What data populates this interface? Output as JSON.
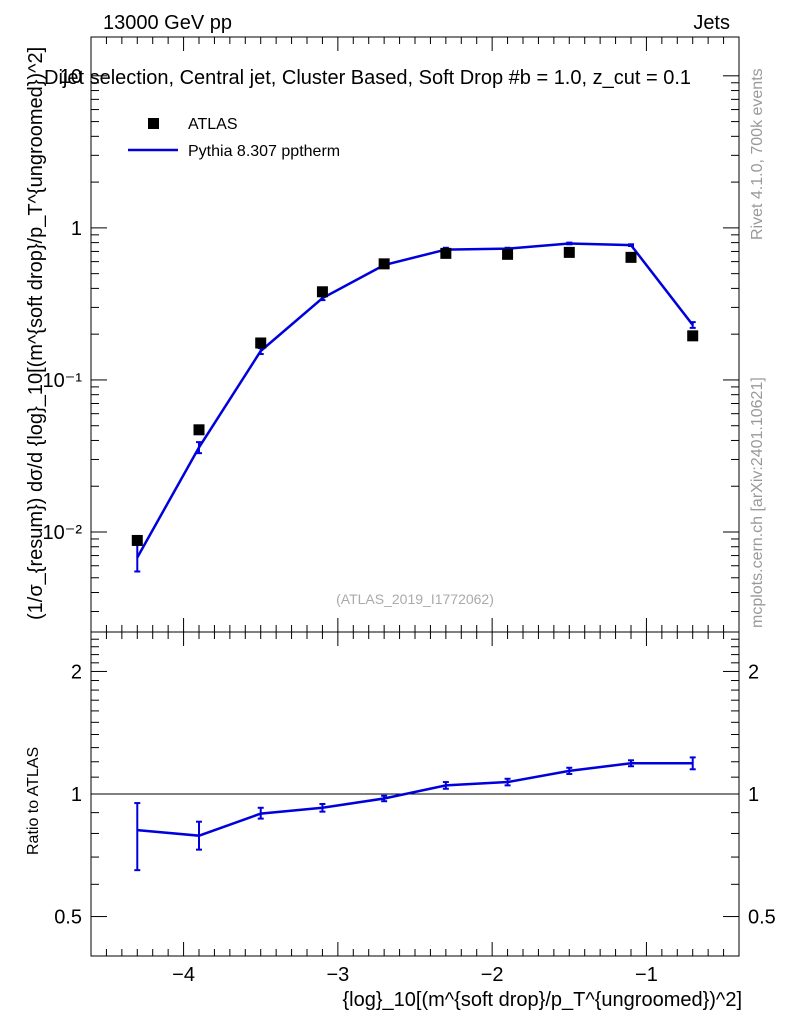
{
  "header": {
    "left": "13000 GeV pp",
    "right": "Jets",
    "title": "Dijet selection, Central jet, Cluster Based, Soft Drop #b = 1.0, z_cut = 0.1"
  },
  "side_labels": {
    "rivet": "Rivet 4.1.0,  700k events",
    "mcplots": "mcplots.cern.ch [arXiv:2401.10621]"
  },
  "analysis_ref": "(ATLAS_2019_I1772062)",
  "legend": {
    "data": "ATLAS",
    "mc": "Pythia 8.307 pptherm"
  },
  "axes": {
    "ylabel_main": "(1/σ_{resum}) dσ/d {log}_10[(m^{soft drop}/p_T^{ungroomed})^2]",
    "ylabel_ratio": "Ratio to ATLAS",
    "xlabel": "{log}_10[(m^{soft drop}/p_T^{ungroomed})^2]",
    "x_ticks": [
      "−4",
      "−3",
      "−2",
      "−1"
    ],
    "main_ticks": [
      "10",
      "1",
      "10⁻¹",
      "10⁻²"
    ],
    "ratio_ticks": [
      "2",
      "1",
      "0.5"
    ]
  },
  "colors": {
    "mc": "#0000dd",
    "data": "#000000"
  },
  "chart_data": {
    "type": "scatter",
    "x": [
      -4.3,
      -3.9,
      -3.5,
      -3.1,
      -2.7,
      -2.3,
      -1.9,
      -1.5,
      -1.1,
      -0.7
    ],
    "xlim": [
      -4.6,
      -0.4
    ],
    "main": {
      "yscale": "log",
      "ylim": [
        0.0022,
        18
      ],
      "series": [
        {
          "name": "ATLAS",
          "style": "markers",
          "values": [
            0.0088,
            0.047,
            0.175,
            0.38,
            0.58,
            0.68,
            0.67,
            0.69,
            0.64,
            0.195
          ]
        },
        {
          "name": "Pythia 8.307 pptherm",
          "style": "line",
          "values": [
            0.0068,
            0.036,
            0.155,
            0.345,
            0.57,
            0.72,
            0.73,
            0.79,
            0.77,
            0.23
          ],
          "err_low": [
            0.0055,
            0.033,
            0.148,
            0.335,
            0.56,
            0.7,
            0.72,
            0.78,
            0.76,
            0.22
          ],
          "err_high": [
            0.0085,
            0.039,
            0.162,
            0.355,
            0.58,
            0.74,
            0.74,
            0.8,
            0.78,
            0.24
          ]
        }
      ]
    },
    "ratio": {
      "yscale": "log",
      "ylim": [
        0.4,
        2.5
      ],
      "reference": 1.0,
      "series": [
        {
          "name": "Pythia 8.307 pptherm / ATLAS",
          "values": [
            0.815,
            0.79,
            0.895,
            0.925,
            0.975,
            1.05,
            1.07,
            1.14,
            1.19,
            1.19
          ],
          "err_low": [
            0.65,
            0.73,
            0.87,
            0.905,
            0.96,
            1.03,
            1.05,
            1.12,
            1.17,
            1.15
          ],
          "err_high": [
            0.95,
            0.855,
            0.925,
            0.945,
            0.99,
            1.07,
            1.09,
            1.16,
            1.21,
            1.23
          ]
        }
      ]
    }
  }
}
